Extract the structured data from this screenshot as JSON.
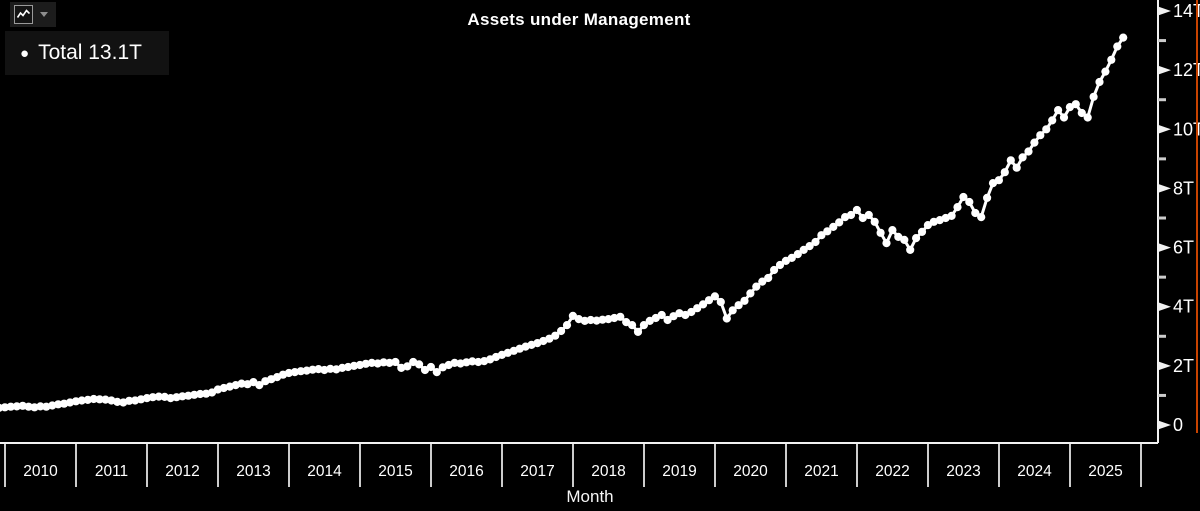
{
  "title": "Assets under Management",
  "toolbar": {
    "chart_type_icon": "line-chart",
    "dropdown_icon": "caret-down"
  },
  "legend": {
    "marker": "●",
    "label": "Total 13.1T"
  },
  "x_axis": {
    "label": "Month",
    "years": [
      "2010",
      "2011",
      "2012",
      "2013",
      "2014",
      "2015",
      "2016",
      "2017",
      "2018",
      "2019",
      "2020",
      "2021",
      "2022",
      "2023",
      "2024",
      "2025"
    ]
  },
  "y_axis": {
    "tick_labels": [
      "0",
      "2T",
      "4T",
      "6T",
      "8T",
      "10T",
      "12T",
      "14T"
    ],
    "major_values": [
      0,
      2,
      4,
      6,
      8,
      10,
      12,
      14
    ],
    "minor_values": [
      1,
      3,
      5,
      7,
      9,
      11,
      13
    ],
    "ylim": [
      0,
      14
    ]
  },
  "colors": {
    "background": "#000000",
    "series": "#ffffff",
    "axis": "#f2f2f2",
    "tick": "#cccccc",
    "label": "#ffffff",
    "legend_bg": "#121212",
    "edge_accent": "#c84300"
  },
  "chart_data": {
    "type": "line",
    "title": "Assets under Management",
    "xlabel": "Month",
    "ylabel": "",
    "series_name": "Total",
    "latest_value_label": "13.1T",
    "unit": "trillions",
    "x_start": "2009-12",
    "x_interval": "monthly",
    "ylim": [
      0,
      14
    ],
    "legend_position": "top-left",
    "grid": false,
    "marker": "circle",
    "values": [
      0.58,
      0.6,
      0.62,
      0.63,
      0.65,
      0.62,
      0.6,
      0.63,
      0.62,
      0.66,
      0.7,
      0.72,
      0.76,
      0.8,
      0.83,
      0.85,
      0.88,
      0.87,
      0.86,
      0.83,
      0.78,
      0.76,
      0.82,
      0.83,
      0.87,
      0.91,
      0.94,
      0.96,
      0.95,
      0.91,
      0.94,
      0.97,
      0.99,
      1.02,
      1.05,
      1.06,
      1.1,
      1.2,
      1.25,
      1.3,
      1.35,
      1.4,
      1.38,
      1.45,
      1.35,
      1.48,
      1.55,
      1.62,
      1.7,
      1.76,
      1.79,
      1.82,
      1.84,
      1.87,
      1.89,
      1.86,
      1.9,
      1.88,
      1.93,
      1.96,
      2.0,
      2.03,
      2.07,
      2.1,
      2.08,
      2.12,
      2.1,
      2.13,
      1.93,
      1.98,
      2.13,
      2.05,
      1.86,
      1.96,
      1.79,
      1.95,
      2.03,
      2.1,
      2.08,
      2.12,
      2.15,
      2.13,
      2.16,
      2.22,
      2.3,
      2.37,
      2.44,
      2.51,
      2.58,
      2.65,
      2.71,
      2.77,
      2.84,
      2.92,
      3.02,
      3.18,
      3.38,
      3.69,
      3.58,
      3.52,
      3.55,
      3.53,
      3.56,
      3.58,
      3.62,
      3.66,
      3.48,
      3.38,
      3.15,
      3.38,
      3.52,
      3.62,
      3.72,
      3.55,
      3.68,
      3.78,
      3.72,
      3.82,
      3.95,
      4.08,
      4.22,
      4.35,
      4.16,
      3.6,
      3.88,
      4.05,
      4.2,
      4.45,
      4.68,
      4.85,
      4.97,
      5.24,
      5.41,
      5.55,
      5.65,
      5.78,
      5.92,
      6.05,
      6.19,
      6.42,
      6.55,
      6.7,
      6.85,
      7.03,
      7.1,
      7.27,
      7.0,
      7.1,
      6.87,
      6.5,
      6.15,
      6.59,
      6.36,
      6.26,
      5.92,
      6.32,
      6.53,
      6.76,
      6.87,
      6.93,
      7.0,
      7.07,
      7.37,
      7.71,
      7.54,
      7.17,
      7.03,
      7.68,
      8.18,
      8.28,
      8.55,
      8.95,
      8.7,
      9.05,
      9.25,
      9.55,
      9.8,
      10.0,
      10.3,
      10.65,
      10.4,
      10.75,
      10.85,
      10.55,
      10.4,
      11.1,
      11.6,
      11.95,
      12.35,
      12.8,
      13.1
    ]
  }
}
